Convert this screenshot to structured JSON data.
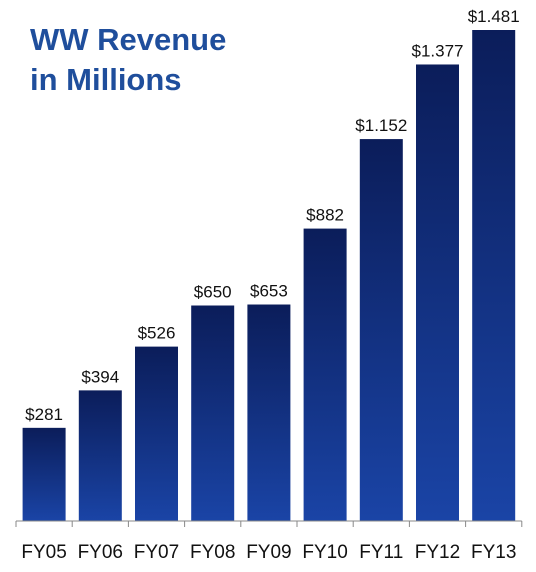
{
  "colors": {
    "title": "#1f4e9c",
    "bar_top": "#0b1d5a",
    "bar_bottom": "#1a44a6",
    "axis": "#888888"
  },
  "chart_data": {
    "type": "bar",
    "title_lines": [
      "WW Revenue",
      "in Millions"
    ],
    "categories": [
      "FY05",
      "FY06",
      "FY07",
      "FY08",
      "FY09",
      "FY10",
      "FY11",
      "FY12",
      "FY13"
    ],
    "values": [
      281,
      394,
      526,
      650,
      653,
      882,
      1152,
      1377,
      1481
    ],
    "value_labels": [
      "$281",
      "$394",
      "$526",
      "$650",
      "$653",
      "$882",
      "$1.152",
      "$1.377",
      "$1.481"
    ],
    "ylim": [
      0,
      1481
    ],
    "grid": false,
    "legend": "none"
  }
}
